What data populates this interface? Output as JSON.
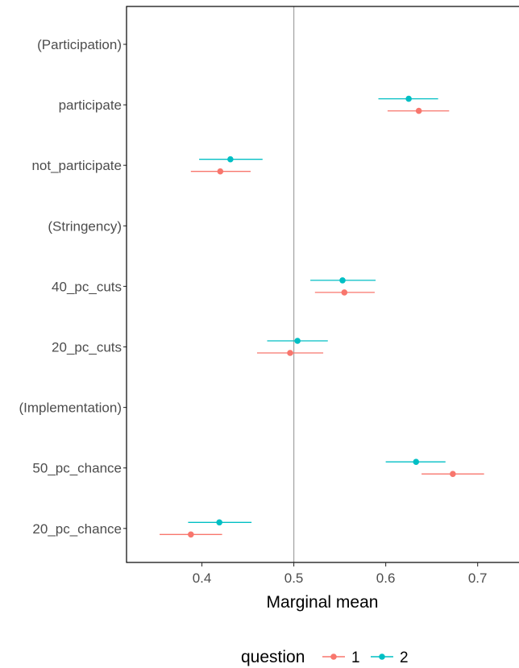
{
  "chart_data": {
    "type": "scatter",
    "subtype": "point-range (dot and whisker)",
    "xlabel": "Marginal mean",
    "ylabel": "",
    "xlim": [
      0.318,
      0.745
    ],
    "xticks": [
      "0.4",
      "0.5",
      "0.6",
      "0.7"
    ],
    "xtick_values": [
      0.4,
      0.5,
      0.6,
      0.7
    ],
    "reference_line": 0.5,
    "grid": false,
    "categories": [
      "(Participation)",
      "participate",
      "not_participate",
      "(Stringency)",
      "40_pc_cuts",
      "20_pc_cuts",
      "(Implementation)",
      "50_pc_chance",
      "20_pc_chance"
    ],
    "legend": {
      "title": "question",
      "position": "bottom",
      "entries": [
        "1",
        "2"
      ]
    },
    "series": [
      {
        "name": "1",
        "color": "#F8766D",
        "points": [
          {
            "category": "participate",
            "mean": 0.636,
            "lower": 0.602,
            "upper": 0.669
          },
          {
            "category": "not_participate",
            "mean": 0.42,
            "lower": 0.388,
            "upper": 0.453
          },
          {
            "category": "40_pc_cuts",
            "mean": 0.555,
            "lower": 0.523,
            "upper": 0.588
          },
          {
            "category": "20_pc_cuts",
            "mean": 0.496,
            "lower": 0.46,
            "upper": 0.532
          },
          {
            "category": "50_pc_chance",
            "mean": 0.673,
            "lower": 0.639,
            "upper": 0.707
          },
          {
            "category": "20_pc_chance",
            "mean": 0.388,
            "lower": 0.354,
            "upper": 0.422
          }
        ]
      },
      {
        "name": "2",
        "color": "#00BFC4",
        "points": [
          {
            "category": "participate",
            "mean": 0.625,
            "lower": 0.592,
            "upper": 0.657
          },
          {
            "category": "not_participate",
            "mean": 0.431,
            "lower": 0.397,
            "upper": 0.466
          },
          {
            "category": "40_pc_cuts",
            "mean": 0.553,
            "lower": 0.518,
            "upper": 0.589
          },
          {
            "category": "20_pc_cuts",
            "mean": 0.504,
            "lower": 0.471,
            "upper": 0.537
          },
          {
            "category": "50_pc_chance",
            "mean": 0.633,
            "lower": 0.6,
            "upper": 0.665
          },
          {
            "category": "20_pc_chance",
            "mean": 0.419,
            "lower": 0.385,
            "upper": 0.454
          }
        ]
      }
    ]
  }
}
